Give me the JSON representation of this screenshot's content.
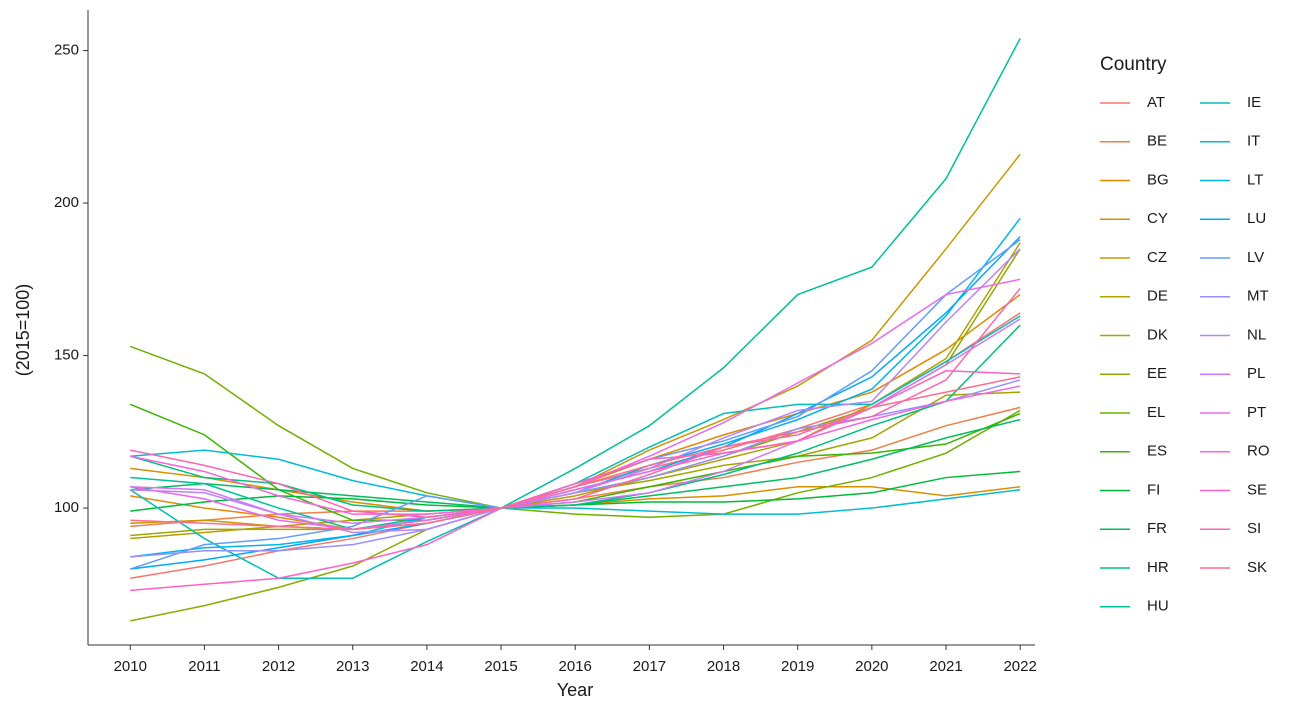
{
  "chart_data": {
    "type": "line",
    "x_label": "Year",
    "y_label": "(2015=100)",
    "legend_title": "Country",
    "legend_position": "right",
    "x": [
      2010,
      2011,
      2012,
      2013,
      2014,
      2015,
      2016,
      2017,
      2018,
      2019,
      2020,
      2021,
      2022
    ],
    "xlim": [
      2009.43,
      2022.2
    ],
    "xticks": [
      2010,
      2011,
      2012,
      2013,
      2014,
      2015,
      2016,
      2017,
      2018,
      2019,
      2020,
      2021,
      2022
    ],
    "ylim": [
      55.1,
      263.3
    ],
    "yticks": [
      100,
      150,
      200,
      250
    ],
    "grid": false,
    "series": [
      {
        "name": "AT",
        "color": "#F8766D",
        "values": [
          77,
          81,
          86,
          90,
          95,
          100,
          107,
          113,
          119,
          126,
          134,
          148,
          164
        ]
      },
      {
        "name": "BE",
        "color": "#EF7F49",
        "values": [
          94,
          96,
          98,
          99,
          99,
          100,
          103,
          107,
          110,
          115,
          119,
          127,
          133
        ]
      },
      {
        "name": "BG",
        "color": "#E48800",
        "values": [
          104,
          100,
          97,
          93,
          95,
          100,
          107,
          116,
          124,
          131,
          138,
          152,
          170
        ]
      },
      {
        "name": "CY",
        "color": "#D79000",
        "values": [
          113,
          110,
          106,
          102,
          99,
          100,
          101,
          103,
          104,
          107,
          107,
          104,
          107
        ]
      },
      {
        "name": "CZ",
        "color": "#C89800",
        "values": [
          95,
          96,
          94,
          93,
          95,
          100,
          107,
          119,
          129,
          140,
          155,
          185,
          216
        ]
      },
      {
        "name": "DE",
        "color": "#B79F00",
        "values": [
          90,
          92,
          94,
          96,
          98,
          100,
          104,
          110,
          116,
          122,
          134,
          149,
          187
        ]
      },
      {
        "name": "DK",
        "color": "#A3A500",
        "values": [
          91,
          93,
          93,
          93,
          96,
          100,
          105,
          109,
          114,
          117,
          123,
          137,
          138
        ]
      },
      {
        "name": "EE",
        "color": "#8CAB00",
        "values": [
          63,
          68,
          74,
          81,
          93,
          100,
          105,
          110,
          117,
          125,
          133,
          147,
          185
        ]
      },
      {
        "name": "EL",
        "color": "#6FB000",
        "values": [
          153,
          144,
          127,
          113,
          105,
          100,
          98,
          97,
          98,
          105,
          110,
          118,
          132
        ]
      },
      {
        "name": "ES",
        "color": "#39B600",
        "values": [
          134,
          124,
          106,
          96,
          96,
          100,
          102,
          107,
          112,
          117,
          118,
          121,
          131
        ]
      },
      {
        "name": "FI",
        "color": "#00BA38",
        "values": [
          99,
          102,
          104,
          103,
          101,
          100,
          101,
          102,
          102,
          103,
          105,
          110,
          112
        ]
      },
      {
        "name": "FR",
        "color": "#00BD5F",
        "values": [
          106,
          108,
          106,
          104,
          102,
          100,
          101,
          104,
          107,
          110,
          116,
          123,
          129
        ]
      },
      {
        "name": "HR",
        "color": "#00BF7D",
        "values": [
          117,
          110,
          108,
          101,
          99,
          100,
          101,
          105,
          111,
          118,
          127,
          135,
          160
        ]
      },
      {
        "name": "HU",
        "color": "#00C19A",
        "values": [
          110,
          108,
          100,
          93,
          97,
          100,
          113,
          127,
          146,
          170,
          179,
          208,
          254
        ]
      },
      {
        "name": "IE",
        "color": "#00C0B8",
        "values": [
          106,
          90,
          77,
          77,
          89,
          100,
          108,
          120,
          131,
          134,
          134,
          148,
          163
        ]
      },
      {
        "name": "IT",
        "color": "#00BCD6",
        "values": [
          117,
          119,
          116,
          109,
          104,
          100,
          100,
          99,
          98,
          98,
          100,
          103,
          106
        ]
      },
      {
        "name": "LT",
        "color": "#00B5EE",
        "values": [
          84,
          87,
          88,
          91,
          97,
          100,
          105,
          114,
          121,
          129,
          139,
          163,
          195
        ]
      },
      {
        "name": "LU",
        "color": "#00A9FF",
        "values": [
          80,
          83,
          87,
          91,
          95,
          100,
          106,
          112,
          120,
          131,
          143,
          164,
          189
        ]
      },
      {
        "name": "LV",
        "color": "#619CFF",
        "values": [
          80,
          88,
          90,
          94,
          104,
          100,
          108,
          116,
          122,
          130,
          145,
          170,
          188
        ]
      },
      {
        "name": "MT",
        "color": "#9590FF",
        "values": [
          84,
          86,
          86,
          88,
          93,
          100,
          105,
          110,
          117,
          126,
          130,
          135,
          142
        ]
      },
      {
        "name": "NL",
        "color": "#B983FF",
        "values": [
          106,
          105,
          98,
          92,
          93,
          100,
          105,
          113,
          123,
          132,
          135,
          161,
          185
        ]
      },
      {
        "name": "PL",
        "color": "#D774FD",
        "values": [
          107,
          106,
          98,
          95,
          97,
          100,
          102,
          105,
          112,
          122,
          133,
          147,
          162
        ]
      },
      {
        "name": "PT",
        "color": "#EB69EF",
        "values": [
          107,
          103,
          96,
          93,
          96,
          100,
          107,
          117,
          128,
          141,
          154,
          170,
          175
        ]
      },
      {
        "name": "RO",
        "color": "#F863DF",
        "values": [
          117,
          112,
          104,
          98,
          98,
          100,
          106,
          112,
          118,
          122,
          129,
          135,
          140
        ]
      },
      {
        "name": "SE",
        "color": "#FF61C3",
        "values": [
          73,
          75,
          77,
          82,
          88,
          100,
          108,
          116,
          118,
          122,
          133,
          145,
          144
        ]
      },
      {
        "name": "SI",
        "color": "#FF65AE",
        "values": [
          119,
          114,
          108,
          99,
          97,
          100,
          103,
          111,
          120,
          125,
          130,
          142,
          172
        ]
      },
      {
        "name": "SK",
        "color": "#FF6C91",
        "values": [
          96,
          95,
          94,
          93,
          95,
          100,
          107,
          114,
          120,
          124,
          133,
          138,
          143
        ]
      }
    ]
  }
}
